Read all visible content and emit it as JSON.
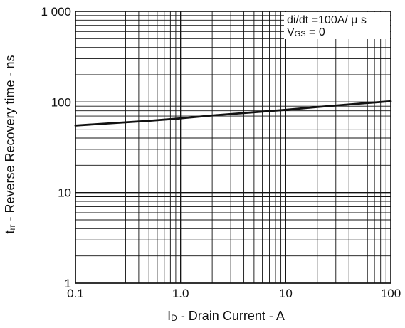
{
  "chart_data": {
    "type": "line",
    "x_scale": "log",
    "y_scale": "log",
    "xlim": [
      0.1,
      100
    ],
    "ylim": [
      1,
      1000
    ],
    "x_tick_labels": [
      "0.1",
      "1.0",
      "10",
      "100"
    ],
    "y_tick_labels": [
      "1",
      "10",
      "100",
      "1 000"
    ],
    "x_tick_values": [
      0.1,
      1,
      10,
      100
    ],
    "y_tick_values": [
      1,
      10,
      100,
      1000
    ],
    "xlabel": {
      "symbol": "I",
      "subscript": "D",
      "text": " - Drain Current   - A"
    },
    "ylabel": {
      "symbol": "t",
      "subscript": "rr",
      "text": " - Reverse Recovery time  -  ns"
    },
    "annotation": {
      "line1": "di/dt =100A/ μ s",
      "line2_symbol": "V",
      "line2_subscript": "GS",
      "line2_text": " = 0"
    },
    "grid": true,
    "series": [
      {
        "x": [
          0.1,
          0.2,
          0.5,
          1,
          2,
          5,
          10,
          20,
          50,
          100
        ],
        "y": [
          55,
          58,
          62,
          66,
          71,
          77,
          82,
          88,
          96,
          102
        ]
      }
    ],
    "colors": {
      "line": "#111111",
      "grid": "#111111",
      "frame": "#111111",
      "background": "#ffffff"
    }
  }
}
